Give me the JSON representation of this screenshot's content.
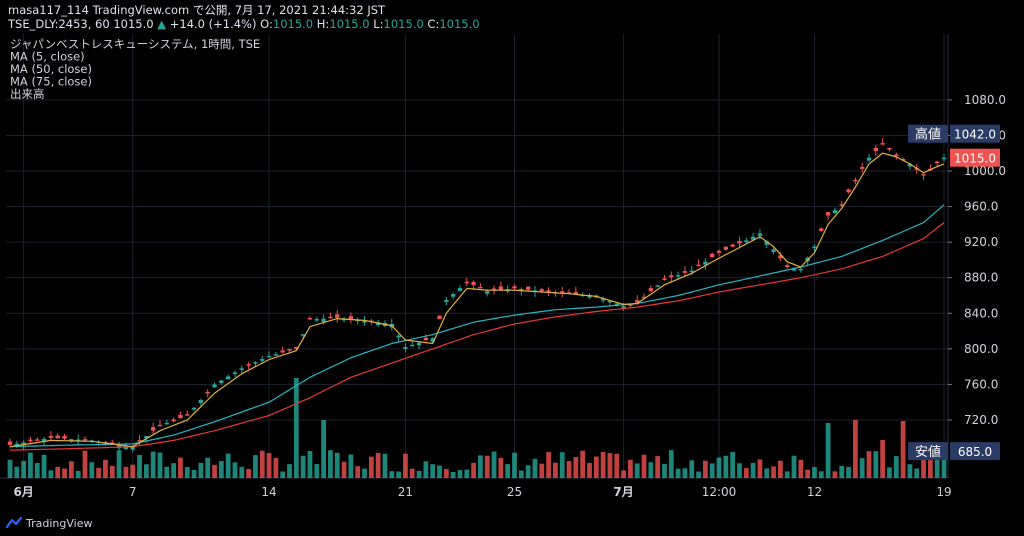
{
  "header": {
    "line1": "masa117_114 TradingView.com で公開, 7月 17, 2021 21:44:32 JST",
    "symbol": "TSE_DLY:2453, 60",
    "last": "1015.0",
    "change_arrow": "▲",
    "change": "+14.0 (+1.4%)",
    "o_label": "O:",
    "o": "1015.0",
    "h_label": "H:",
    "h": "1015.0",
    "l_label": "L:",
    "l": "1015.0",
    "c_label": "C:",
    "c": "1015.0"
  },
  "footer": {
    "brand": "TradingView",
    "logo_icon": "tradingview-logo-icon"
  },
  "chart_data": {
    "type": "line",
    "legend": [
      "ジャパンベストレスキューシステム, 1時間, TSE",
      "MA (5, close)",
      "MA (50, close)",
      "MA (75, close)",
      "出来高"
    ],
    "y_ticks": [
      1080,
      1040,
      1000,
      960,
      920,
      880,
      840,
      800,
      760,
      720
    ],
    "ylim": [
      675,
      1108
    ],
    "x_ticks": [
      {
        "label": "6月",
        "bar": 2,
        "bold": true
      },
      {
        "label": "7",
        "bar": 18
      },
      {
        "label": "14",
        "bar": 38
      },
      {
        "label": "21",
        "bar": 58
      },
      {
        "label": "25",
        "bar": 74
      },
      {
        "label": "7月",
        "bar": 90,
        "bold": true
      },
      {
        "label": "12:00",
        "bar": 104
      },
      {
        "label": "12",
        "bar": 118
      },
      {
        "label": "19",
        "bar": 137
      }
    ],
    "bar_count": 138,
    "price_path": [
      [
        0,
        692
      ],
      [
        6,
        700
      ],
      [
        12,
        697
      ],
      [
        18,
        690
      ],
      [
        22,
        714
      ],
      [
        26,
        725
      ],
      [
        30,
        760
      ],
      [
        34,
        778
      ],
      [
        38,
        792
      ],
      [
        42,
        800
      ],
      [
        44,
        833
      ],
      [
        48,
        835
      ],
      [
        52,
        832
      ],
      [
        56,
        828
      ],
      [
        58,
        802
      ],
      [
        62,
        812
      ],
      [
        64,
        855
      ],
      [
        67,
        875
      ],
      [
        70,
        865
      ],
      [
        74,
        868
      ],
      [
        78,
        865
      ],
      [
        82,
        862
      ],
      [
        86,
        860
      ],
      [
        90,
        848
      ],
      [
        92,
        852
      ],
      [
        96,
        878
      ],
      [
        100,
        888
      ],
      [
        104,
        908
      ],
      [
        108,
        922
      ],
      [
        110,
        930
      ],
      [
        112,
        912
      ],
      [
        114,
        892
      ],
      [
        116,
        890
      ],
      [
        118,
        915
      ],
      [
        120,
        950
      ],
      [
        122,
        962
      ],
      [
        124,
        990
      ],
      [
        126,
        1015
      ],
      [
        128,
        1030
      ],
      [
        130,
        1018
      ],
      [
        132,
        1008
      ],
      [
        134,
        995
      ],
      [
        136,
        1010
      ],
      [
        137,
        1015
      ]
    ],
    "ma5_path": [
      [
        0,
        690
      ],
      [
        6,
        697
      ],
      [
        12,
        696
      ],
      [
        18,
        690
      ],
      [
        22,
        708
      ],
      [
        26,
        720
      ],
      [
        30,
        750
      ],
      [
        34,
        772
      ],
      [
        38,
        788
      ],
      [
        42,
        798
      ],
      [
        44,
        825
      ],
      [
        48,
        834
      ],
      [
        52,
        832
      ],
      [
        56,
        826
      ],
      [
        58,
        810
      ],
      [
        62,
        806
      ],
      [
        64,
        840
      ],
      [
        67,
        868
      ],
      [
        70,
        866
      ],
      [
        74,
        866
      ],
      [
        78,
        864
      ],
      [
        82,
        862
      ],
      [
        86,
        859
      ],
      [
        90,
        850
      ],
      [
        92,
        851
      ],
      [
        96,
        872
      ],
      [
        100,
        885
      ],
      [
        104,
        902
      ],
      [
        108,
        918
      ],
      [
        110,
        926
      ],
      [
        112,
        915
      ],
      [
        114,
        898
      ],
      [
        116,
        892
      ],
      [
        118,
        908
      ],
      [
        120,
        940
      ],
      [
        122,
        958
      ],
      [
        124,
        982
      ],
      [
        126,
        1008
      ],
      [
        128,
        1020
      ],
      [
        130,
        1016
      ],
      [
        132,
        1008
      ],
      [
        134,
        998
      ],
      [
        136,
        1005
      ],
      [
        137,
        1008
      ]
    ],
    "ma50_path": [
      [
        0,
        690
      ],
      [
        10,
        692
      ],
      [
        18,
        693
      ],
      [
        24,
        703
      ],
      [
        30,
        718
      ],
      [
        38,
        740
      ],
      [
        44,
        768
      ],
      [
        50,
        790
      ],
      [
        56,
        806
      ],
      [
        62,
        816
      ],
      [
        68,
        830
      ],
      [
        74,
        838
      ],
      [
        80,
        844
      ],
      [
        86,
        847
      ],
      [
        92,
        851
      ],
      [
        98,
        860
      ],
      [
        104,
        872
      ],
      [
        110,
        882
      ],
      [
        116,
        892
      ],
      [
        122,
        904
      ],
      [
        128,
        922
      ],
      [
        134,
        942
      ],
      [
        137,
        962
      ]
    ],
    "ma75_path": [
      [
        0,
        686
      ],
      [
        10,
        688
      ],
      [
        18,
        690
      ],
      [
        24,
        697
      ],
      [
        30,
        708
      ],
      [
        38,
        725
      ],
      [
        44,
        745
      ],
      [
        50,
        768
      ],
      [
        56,
        784
      ],
      [
        62,
        800
      ],
      [
        68,
        816
      ],
      [
        74,
        828
      ],
      [
        80,
        836
      ],
      [
        86,
        842
      ],
      [
        92,
        847
      ],
      [
        98,
        854
      ],
      [
        104,
        864
      ],
      [
        110,
        872
      ],
      [
        116,
        880
      ],
      [
        122,
        890
      ],
      [
        128,
        904
      ],
      [
        134,
        924
      ],
      [
        137,
        942
      ]
    ],
    "volume_spikes": [
      [
        42,
        100
      ],
      [
        46,
        58
      ],
      [
        88,
        25
      ],
      [
        120,
        55
      ],
      [
        124,
        58
      ],
      [
        128,
        38
      ],
      [
        131,
        57
      ]
    ],
    "labels": [
      {
        "text": "高値",
        "value": "1042.0",
        "y": 1042
      },
      {
        "text": "安値",
        "value": "685.0",
        "y": 685
      }
    ],
    "last_price_label": {
      "value": "1015.0",
      "y": 1015
    },
    "colors": {
      "up": "#26a69a",
      "down": "#ef5350",
      "ma5": "#e0b13c",
      "ma50": "#26b5c5",
      "ma75": "#e53935",
      "grid": "#1e222d",
      "hilo_bg": "#2a3b66",
      "last_bg": "#ef5350"
    }
  }
}
